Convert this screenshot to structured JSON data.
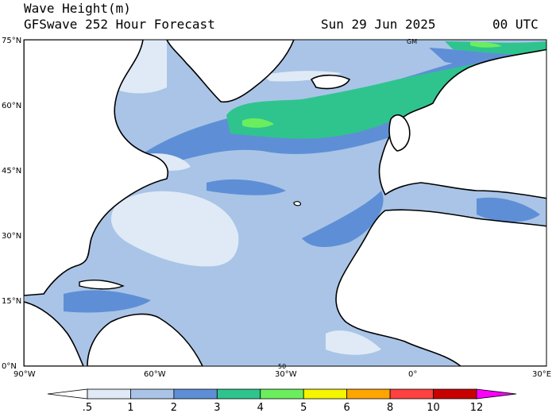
{
  "header": {
    "title": "Wave Height(m)",
    "subtitle": "GFSwave 252 Hour Forecast",
    "date": "Sun 29 Jun 2025",
    "time": "00 UTC"
  },
  "map": {
    "extent": {
      "lon": [
        -90,
        30
      ],
      "lat": [
        0,
        75
      ]
    },
    "lat_ticks": [
      "0°N",
      "15°N",
      "30°N",
      "45°N",
      "60°N",
      "75°N"
    ],
    "lon_ticks": [
      "90°W",
      "60°W",
      "30°W",
      "0°",
      "30°E"
    ],
    "grid_markers": [
      "50",
      "GM"
    ],
    "colors": {
      "land": "#ffffff",
      "coast": "#000000",
      "band_05_1": "#dfeaf6",
      "band_1_2": "#a9c4e6",
      "band_2_3": "#5e8fd6",
      "band_3_4": "#2fc48e",
      "band_4_5": "#6bee5e",
      "band_5_6": "#f5f500",
      "band_6_8": "#ffa500",
      "band_8_10": "#ff4040",
      "band_10_12": "#c80000",
      "band_12plus": "#ff00ff"
    }
  },
  "colorbar": {
    "labels": [
      ".5",
      "1",
      "2",
      "3",
      "4",
      "5",
      "6",
      "8",
      "10",
      "12"
    ],
    "colors": [
      "#ffffff",
      "#dfeaf6",
      "#a9c4e6",
      "#5e8fd6",
      "#2fc48e",
      "#6bee5e",
      "#f5f500",
      "#ffa500",
      "#ff4040",
      "#c80000",
      "#ff00ff"
    ]
  }
}
